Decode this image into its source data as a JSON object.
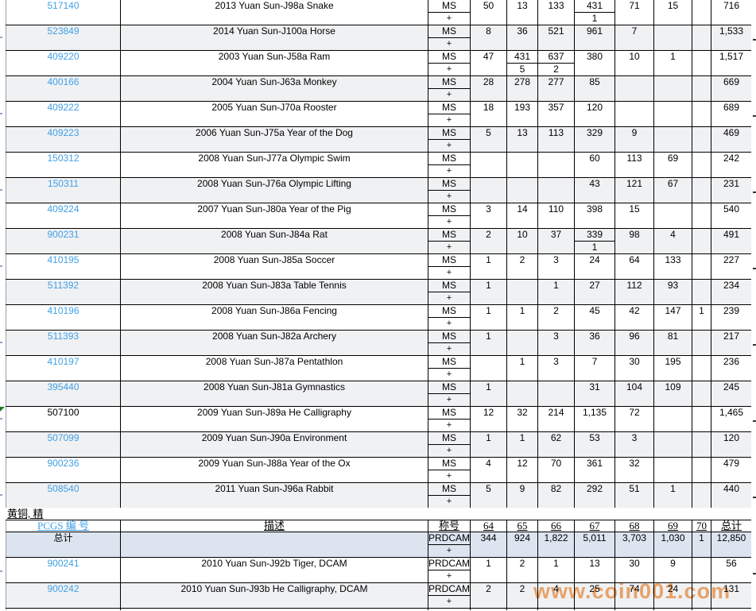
{
  "section_label": "黄铜, 精",
  "watermark": "www.coin001.com",
  "plus_symbol": "+",
  "palette": {
    "link_blue": "#42a0e6",
    "visited_black": "#000000",
    "alt_row_bg": "#f0f1f3",
    "total_row_bg": "#dbe4ef",
    "watermark_orange": "#f49e54",
    "marker_green": "#1f7a1f",
    "border_black": "#000000"
  },
  "header": {
    "pcgs": "PCGS 编 号",
    "desc": "描述",
    "desig": "称号",
    "grades": [
      "64",
      "65",
      "66",
      "67",
      "68",
      "69",
      "70"
    ],
    "total": "总计"
  },
  "main_rows": [
    {
      "pcgs": "517140",
      "visited": false,
      "marker": false,
      "desc": "2013 Yuan Sun-J98a Snake",
      "desig": "MS",
      "g": [
        "50",
        "13",
        "133",
        "431",
        "71",
        "15",
        ""
      ],
      "gp": [
        "",
        "",
        "",
        "1",
        "",
        "",
        ""
      ],
      "total": "716"
    },
    {
      "pcgs": "523849",
      "visited": false,
      "marker": false,
      "desc": "2014 Yuan Sun-J100a Horse",
      "desig": "MS",
      "g": [
        "8",
        "36",
        "521",
        "961",
        "7",
        "",
        ""
      ],
      "gp": [
        "",
        "",
        "",
        "",
        "",
        "",
        ""
      ],
      "total": "1,533"
    },
    {
      "pcgs": "409220",
      "visited": false,
      "marker": false,
      "desc": "2003 Yuan Sun-J58a Ram",
      "desig": "MS",
      "g": [
        "47",
        "431",
        "637",
        "380",
        "10",
        "1",
        ""
      ],
      "gp": [
        "",
        "5",
        "2",
        "",
        "",
        "",
        ""
      ],
      "total": "1,517"
    },
    {
      "pcgs": "400166",
      "visited": false,
      "marker": false,
      "desc": "2004 Yuan Sun-J63a Monkey",
      "desig": "MS",
      "g": [
        "28",
        "278",
        "277",
        "85",
        "",
        "",
        ""
      ],
      "gp": [
        "",
        "",
        "",
        "",
        "",
        "",
        ""
      ],
      "total": "669"
    },
    {
      "pcgs": "409222",
      "visited": false,
      "marker": false,
      "desc": "2005 Yuan Sun-J70a Rooster",
      "desig": "MS",
      "g": [
        "18",
        "193",
        "357",
        "120",
        "",
        "",
        ""
      ],
      "gp": [
        "",
        "",
        "",
        "",
        "",
        "",
        ""
      ],
      "total": "689"
    },
    {
      "pcgs": "409223",
      "visited": false,
      "marker": false,
      "desc": "2006 Yuan Sun-J75a Year of the Dog",
      "desig": "MS",
      "g": [
        "5",
        "13",
        "113",
        "329",
        "9",
        "",
        ""
      ],
      "gp": [
        "",
        "",
        "",
        "",
        "",
        "",
        ""
      ],
      "total": "469"
    },
    {
      "pcgs": "150312",
      "visited": false,
      "marker": false,
      "desc": "2008 Yuan Sun-J77a Olympic Swim",
      "desig": "MS",
      "g": [
        "",
        "",
        "",
        "60",
        "113",
        "69",
        ""
      ],
      "gp": [
        "",
        "",
        "",
        "",
        "",
        "",
        ""
      ],
      "total": "242"
    },
    {
      "pcgs": "150311",
      "visited": false,
      "marker": false,
      "desc": "2008 Yuan Sun-J76a Olympic Lifting",
      "desig": "MS",
      "g": [
        "",
        "",
        "",
        "43",
        "121",
        "67",
        ""
      ],
      "gp": [
        "",
        "",
        "",
        "",
        "",
        "",
        ""
      ],
      "total": "231"
    },
    {
      "pcgs": "409224",
      "visited": false,
      "marker": false,
      "desc": "2007 Yuan Sun-J80a Year of the Pig",
      "desig": "MS",
      "g": [
        "3",
        "14",
        "110",
        "398",
        "15",
        "",
        ""
      ],
      "gp": [
        "",
        "",
        "",
        "",
        "",
        "",
        ""
      ],
      "total": "540"
    },
    {
      "pcgs": "900231",
      "visited": false,
      "marker": false,
      "desc": "2008 Yuan Sun-J84a Rat",
      "desig": "MS",
      "g": [
        "2",
        "10",
        "37",
        "339",
        "98",
        "4",
        ""
      ],
      "gp": [
        "",
        "",
        "",
        "1",
        "",
        "",
        ""
      ],
      "total": "491"
    },
    {
      "pcgs": "410195",
      "visited": false,
      "marker": false,
      "desc": "2008 Yuan Sun-J85a Soccer",
      "desig": "MS",
      "g": [
        "1",
        "2",
        "3",
        "24",
        "64",
        "133",
        ""
      ],
      "gp": [
        "",
        "",
        "",
        "",
        "",
        "",
        ""
      ],
      "total": "227"
    },
    {
      "pcgs": "511392",
      "visited": false,
      "marker": false,
      "desc": "2008 Yuan Sun-J83a Table Tennis",
      "desig": "MS",
      "g": [
        "1",
        "",
        "1",
        "27",
        "112",
        "93",
        ""
      ],
      "gp": [
        "",
        "",
        "",
        "",
        "",
        "",
        ""
      ],
      "total": "234"
    },
    {
      "pcgs": "410196",
      "visited": false,
      "marker": false,
      "desc": "2008 Yuan Sun-J86a Fencing",
      "desig": "MS",
      "g": [
        "1",
        "1",
        "2",
        "45",
        "42",
        "147",
        "1"
      ],
      "gp": [
        "",
        "",
        "",
        "",
        "",
        "",
        ""
      ],
      "total": "239"
    },
    {
      "pcgs": "511393",
      "visited": false,
      "marker": false,
      "desc": "2008 Yuan Sun-J82a Archery",
      "desig": "MS",
      "g": [
        "1",
        "",
        "3",
        "36",
        "96",
        "81",
        ""
      ],
      "gp": [
        "",
        "",
        "",
        "",
        "",
        "",
        ""
      ],
      "total": "217"
    },
    {
      "pcgs": "410197",
      "visited": false,
      "marker": false,
      "desc": "2008 Yuan Sun-J87a Pentathlon",
      "desig": "MS",
      "g": [
        "",
        "1",
        "3",
        "7",
        "30",
        "195",
        ""
      ],
      "gp": [
        "",
        "",
        "",
        "",
        "",
        "",
        ""
      ],
      "total": "236"
    },
    {
      "pcgs": "395440",
      "visited": false,
      "marker": false,
      "desc": "2008 Yuan Sun-J81a Gymnastics",
      "desig": "MS",
      "g": [
        "1",
        "",
        "",
        "31",
        "104",
        "109",
        ""
      ],
      "gp": [
        "",
        "",
        "",
        "",
        "",
        "",
        ""
      ],
      "total": "245"
    },
    {
      "pcgs": "507100",
      "visited": true,
      "marker": true,
      "desc": "2009 Yuan Sun-J89a He Calligraphy",
      "desig": "MS",
      "g": [
        "12",
        "32",
        "214",
        "1,135",
        "72",
        "",
        ""
      ],
      "gp": [
        "",
        "",
        "",
        "",
        "",
        "",
        ""
      ],
      "total": "1,465"
    },
    {
      "pcgs": "507099",
      "visited": false,
      "marker": false,
      "desc": "2009 Yuan Sun-J90a Environment",
      "desig": "MS",
      "g": [
        "1",
        "1",
        "62",
        "53",
        "3",
        "",
        ""
      ],
      "gp": [
        "",
        "",
        "",
        "",
        "",
        "",
        ""
      ],
      "total": "120"
    },
    {
      "pcgs": "900236",
      "visited": false,
      "marker": false,
      "desc": "2009 Yuan Sun-J88a Year of the Ox",
      "desig": "MS",
      "g": [
        "4",
        "12",
        "70",
        "361",
        "32",
        "",
        ""
      ],
      "gp": [
        "",
        "",
        "",
        "",
        "",
        "",
        ""
      ],
      "total": "479"
    },
    {
      "pcgs": "508540",
      "visited": false,
      "marker": false,
      "desc": "2011 Yuan Sun-J96a Rabbit",
      "desig": "MS",
      "g": [
        "5",
        "9",
        "82",
        "292",
        "51",
        "1",
        ""
      ],
      "gp": [
        "",
        "",
        "",
        "",
        "",
        "",
        ""
      ],
      "total": "440"
    }
  ],
  "proof_section": {
    "total_row": {
      "pcgs": "总计",
      "desc": "",
      "desig": "PRDCAM",
      "g": [
        "344",
        "924",
        "1,822",
        "5,011",
        "3,703",
        "1,030",
        "1"
      ],
      "gp": [
        "",
        "",
        "",
        "",
        "",
        "",
        ""
      ],
      "total": "12,850"
    },
    "rows": [
      {
        "pcgs": "900241",
        "visited": false,
        "marker": false,
        "desc": "2010 Yuan Sun-J92b Tiger, DCAM",
        "desig": "PRDCAM",
        "g": [
          "1",
          "2",
          "1",
          "13",
          "30",
          "9",
          ""
        ],
        "gp": [
          "",
          "",
          "",
          "",
          "",
          "",
          ""
        ],
        "total": "56"
      },
      {
        "pcgs": "900242",
        "visited": false,
        "marker": false,
        "desc": "2010 Yuan Sun-J93b He Calligraphy, DCAM",
        "desig": "PRDCAM",
        "g": [
          "2",
          "2",
          "4",
          "25",
          "74",
          "24",
          ""
        ],
        "gp": [
          "",
          "",
          "",
          "",
          "",
          "",
          ""
        ],
        "total": "131"
      }
    ]
  }
}
